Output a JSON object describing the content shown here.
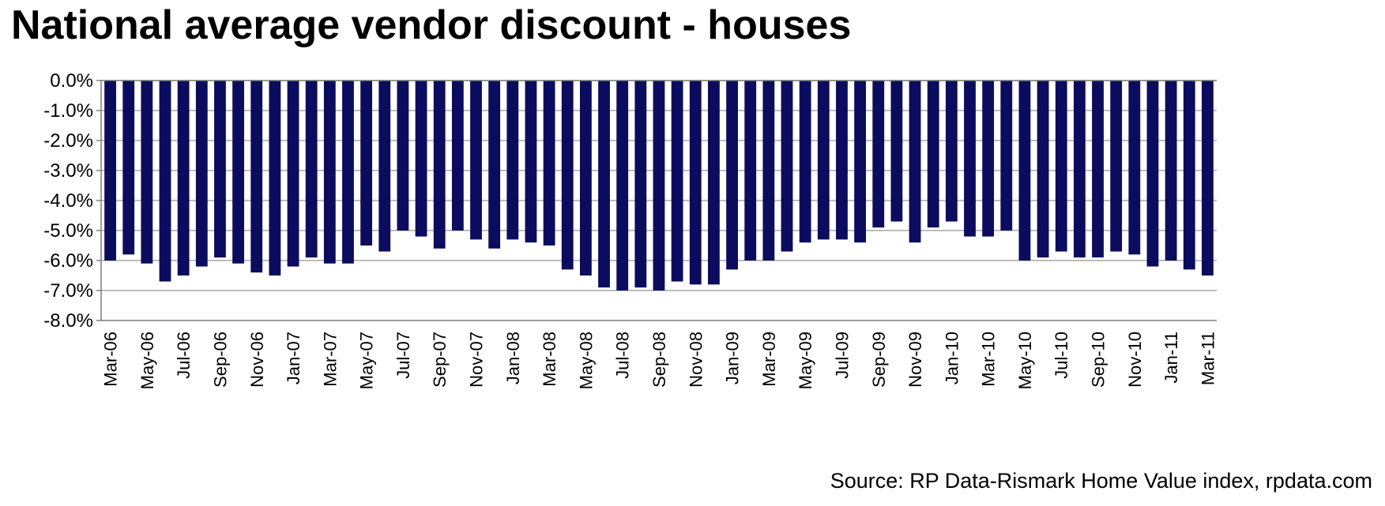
{
  "colors": {
    "bar": "#0c0c5e",
    "grid": "#a6a6a6",
    "axis": "#7f7f7f",
    "text": "#000000"
  },
  "chart_data": {
    "type": "bar",
    "title": "National average vendor discount - houses",
    "source": "Source: RP Data-Rismark Home Value index, rpdata.com",
    "xlabel": "",
    "ylabel": "",
    "ylim": [
      -8,
      0
    ],
    "yticks": [
      0,
      -1,
      -2,
      -3,
      -4,
      -5,
      -6,
      -7,
      -8
    ],
    "ytick_labels": [
      "0.0%",
      "-1.0%",
      "-2.0%",
      "-3.0%",
      "-4.0%",
      "-5.0%",
      "-6.0%",
      "-7.0%",
      "-8.0%"
    ],
    "grid": true,
    "legend": "none",
    "categories": [
      "Mar-06",
      "Apr-06",
      "May-06",
      "Jun-06",
      "Jul-06",
      "Aug-06",
      "Sep-06",
      "Oct-06",
      "Nov-06",
      "Dec-06",
      "Jan-07",
      "Feb-07",
      "Mar-07",
      "Apr-07",
      "May-07",
      "Jun-07",
      "Jul-07",
      "Aug-07",
      "Sep-07",
      "Oct-07",
      "Nov-07",
      "Dec-07",
      "Jan-08",
      "Feb-08",
      "Mar-08",
      "Apr-08",
      "May-08",
      "Jun-08",
      "Jul-08",
      "Aug-08",
      "Sep-08",
      "Oct-08",
      "Nov-08",
      "Dec-08",
      "Jan-09",
      "Feb-09",
      "Mar-09",
      "Apr-09",
      "May-09",
      "Jun-09",
      "Jul-09",
      "Aug-09",
      "Sep-09",
      "Oct-09",
      "Nov-09",
      "Dec-09",
      "Jan-10",
      "Feb-10",
      "Mar-10",
      "Apr-10",
      "May-10",
      "Jun-10",
      "Jul-10",
      "Aug-10",
      "Sep-10",
      "Oct-10",
      "Nov-10",
      "Dec-10",
      "Jan-11",
      "Feb-11",
      "Mar-11"
    ],
    "tick_labels": [
      "Mar-06",
      "",
      "May-06",
      "",
      "Jul-06",
      "",
      "Sep-06",
      "",
      "Nov-06",
      "",
      "Jan-07",
      "",
      "Mar-07",
      "",
      "May-07",
      "",
      "Jul-07",
      "",
      "Sep-07",
      "",
      "Nov-07",
      "",
      "Jan-08",
      "",
      "Mar-08",
      "",
      "May-08",
      "",
      "Jul-08",
      "",
      "Sep-08",
      "",
      "Nov-08",
      "",
      "Jan-09",
      "",
      "Mar-09",
      "",
      "May-09",
      "",
      "Jul-09",
      "",
      "Sep-09",
      "",
      "Nov-09",
      "",
      "Jan-10",
      "",
      "Mar-10",
      "",
      "May-10",
      "",
      "Jul-10",
      "",
      "Sep-10",
      "",
      "Nov-10",
      "",
      "Jan-11",
      "",
      "Mar-11"
    ],
    "values": [
      -6.0,
      -5.8,
      -6.1,
      -6.7,
      -6.5,
      -6.2,
      -5.9,
      -6.1,
      -6.4,
      -6.5,
      -6.2,
      -5.9,
      -6.1,
      -6.1,
      -5.5,
      -5.7,
      -5.0,
      -5.2,
      -5.6,
      -5.0,
      -5.3,
      -5.6,
      -5.3,
      -5.4,
      -5.5,
      -6.3,
      -6.5,
      -6.9,
      -7.0,
      -6.9,
      -7.0,
      -6.7,
      -6.8,
      -6.8,
      -6.3,
      -6.0,
      -6.0,
      -5.7,
      -5.4,
      -5.3,
      -5.3,
      -5.4,
      -4.9,
      -4.7,
      -5.4,
      -4.9,
      -4.7,
      -5.2,
      -5.2,
      -5.0,
      -6.0,
      -5.9,
      -5.7,
      -5.9,
      -5.9,
      -5.7,
      -5.8,
      -6.2,
      -6.0,
      -6.3,
      -6.5
    ]
  }
}
